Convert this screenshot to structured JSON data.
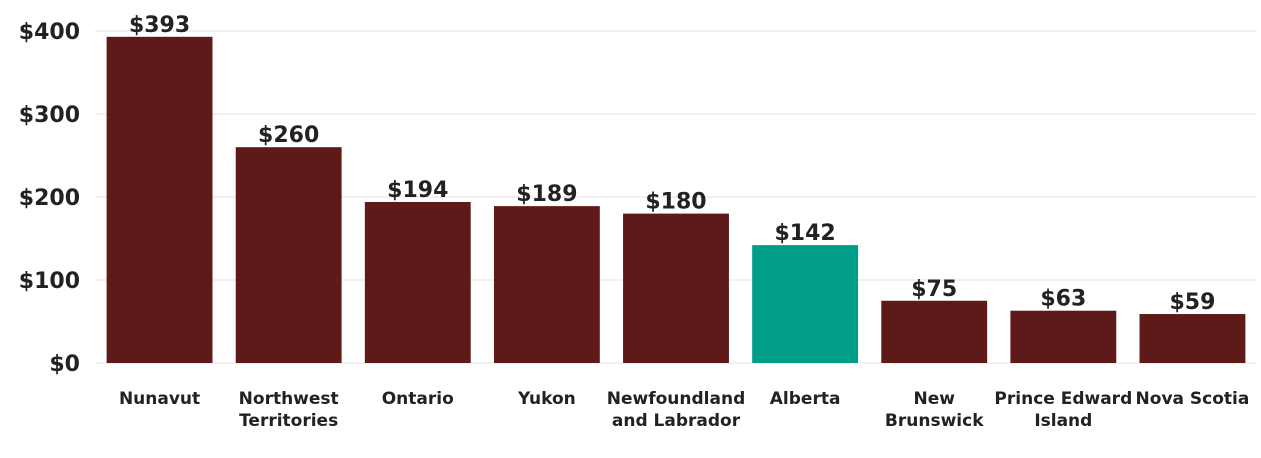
{
  "chart_data": {
    "type": "bar",
    "categories": [
      "Nunavut",
      "Northwest Territories",
      "Ontario",
      "Yukon",
      "Newfoundland and Labrador",
      "Alberta",
      "New Brunswick",
      "Prince Edward Island",
      "Nova Scotia"
    ],
    "values": [
      393,
      260,
      194,
      189,
      180,
      142,
      75,
      63,
      59
    ],
    "value_labels": [
      "$393",
      "$260",
      "$194",
      "$189",
      "$180",
      "$142",
      "$75",
      "$63",
      "$59"
    ],
    "colors": [
      "#5e1a19",
      "#5e1a19",
      "#5e1a19",
      "#5e1a19",
      "#5e1a19",
      "#009e86",
      "#5e1a19",
      "#5e1a19",
      "#5e1a19"
    ],
    "ylim": [
      0,
      400
    ],
    "yticks": [
      {
        "value": 0,
        "label": "$0"
      },
      {
        "value": 100,
        "label": "$100"
      },
      {
        "value": 200,
        "label": "$200"
      },
      {
        "value": 300,
        "label": "$300"
      },
      {
        "value": 400,
        "label": "$400"
      }
    ],
    "grid": true
  }
}
